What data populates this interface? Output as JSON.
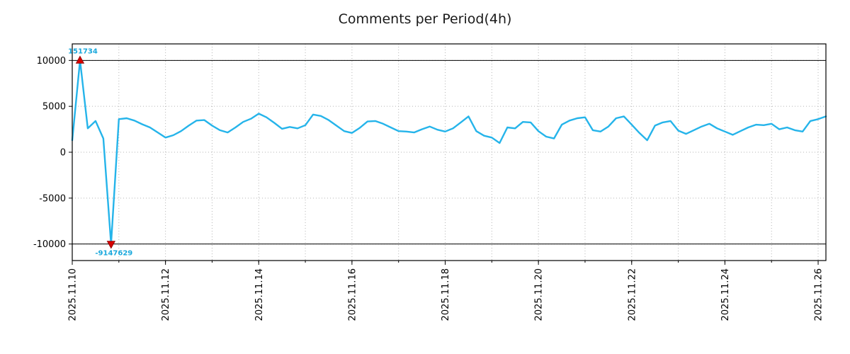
{
  "title": "Comments per Period(4h)",
  "chart_data": {
    "type": "line",
    "title": "Comments per Period(4h)",
    "x_start": "2025.11.10",
    "period_hours": 4,
    "x_total_days": 16.1667,
    "x_tick_labels": [
      "2025.11.10",
      "2025.11.12",
      "2025.11.14",
      "2025.11.16",
      "2025.11.18",
      "2025.11.20",
      "2025.11.22",
      "2025.11.24",
      "2025.11.26"
    ],
    "x_tick_positions_days": [
      0,
      2,
      4,
      6,
      8,
      10,
      12,
      14,
      16
    ],
    "grid_days": [
      0,
      1,
      2,
      3,
      4,
      5,
      6,
      7,
      8,
      9,
      10,
      11,
      12,
      13,
      14,
      15,
      16
    ],
    "y_ticks": [
      -10000,
      -5000,
      0,
      5000,
      10000
    ],
    "ylim": [
      -11800,
      11800
    ],
    "clip_value": 10000,
    "hline_values": [
      10000,
      -10000
    ],
    "line_color": "#25b4ea",
    "annotation_color": "#1aa8dc",
    "marker_color": "#d40000",
    "grid_color": "#b5b5b5",
    "axis_color": "#000000",
    "series": [
      {
        "name": "comments",
        "values": [
          1300,
          151734,
          2600,
          3400,
          1500,
          -9147629,
          3600,
          3700,
          3450,
          3050,
          2700,
          2150,
          1600,
          1850,
          2300,
          2900,
          3450,
          3500,
          2900,
          2400,
          2150,
          2700,
          3300,
          3650,
          4200,
          3800,
          3200,
          2550,
          2750,
          2600,
          2950,
          4100,
          3950,
          3500,
          2900,
          2300,
          2100,
          2650,
          3350,
          3400,
          3100,
          2700,
          2300,
          2250,
          2150,
          2500,
          2800,
          2450,
          2250,
          2600,
          3250,
          3900,
          2300,
          1800,
          1600,
          1000,
          2700,
          2600,
          3300,
          3250,
          2300,
          1700,
          1500,
          3000,
          3450,
          3700,
          3800,
          2400,
          2250,
          2800,
          3700,
          3900,
          3000,
          2100,
          1300,
          2900,
          3250,
          3400,
          2350,
          2000,
          2400,
          2800,
          3100,
          2600,
          2250,
          1900,
          2300,
          2700,
          3000,
          2950,
          3100,
          2500,
          2700,
          2400,
          2250,
          3400,
          3600,
          3900
        ]
      }
    ],
    "annotations": [
      {
        "label": "151734",
        "value": 151734,
        "index": 1,
        "position": "above"
      },
      {
        "label": "-9147629",
        "value": -9147629,
        "index": 5,
        "position": "below"
      }
    ]
  }
}
